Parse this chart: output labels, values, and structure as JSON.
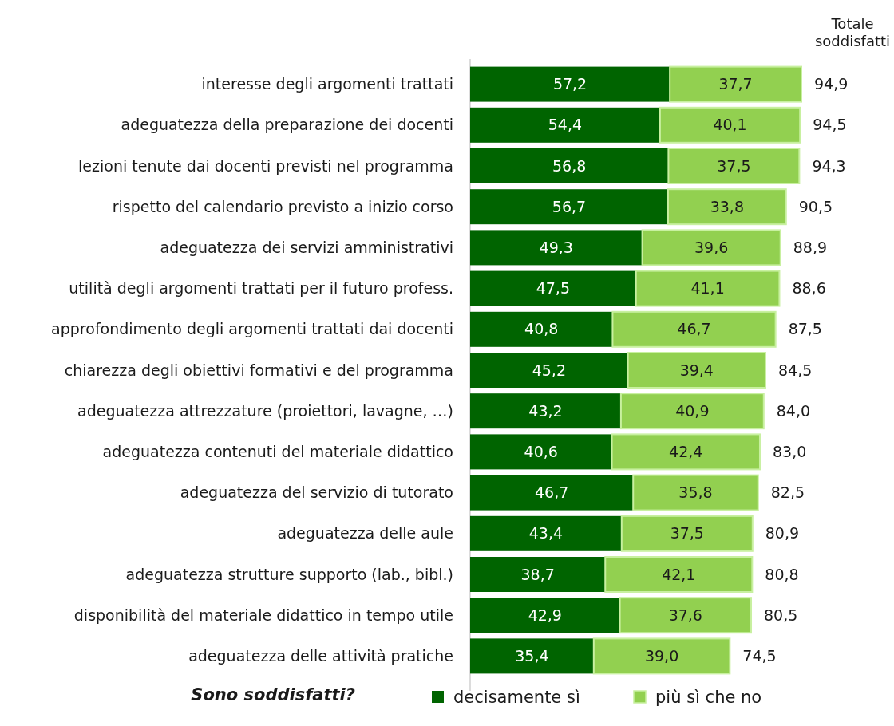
{
  "chart_data": {
    "type": "bar",
    "orientation": "horizontal",
    "stacked": true,
    "legend": "bottom",
    "legend_title": "Sono soddisfatti?",
    "annotations": [
      "Totale soddisfatti"
    ],
    "categories": [
      "interesse degli argomenti trattati",
      "adeguatezza della preparazione dei docenti",
      "lezioni tenute dai docenti previsti nel programma",
      "rispetto del calendario previsto a inizio corso",
      "adeguatezza dei servizi amministrativi",
      "utilità degli argomenti trattati per il futuro profess.",
      "approfondimento degli argomenti trattati dai docenti",
      "chiarezza degli obiettivi formativi e del programma",
      "adeguatezza attrezzature (proiettori, lavagne, …)",
      "adeguatezza contenuti del materiale didattico",
      "adeguatezza del servizio di tutorato",
      "adeguatezza delle aule",
      "adeguatezza strutture supporto (lab., bibl.)",
      "disponibilità del materiale didattico in tempo utile",
      "adeguatezza delle attività pratiche"
    ],
    "series": [
      {
        "name": "decisamente sì",
        "color": "#006400",
        "values": [
          57.2,
          54.4,
          56.8,
          56.7,
          49.3,
          47.5,
          40.8,
          45.2,
          43.2,
          40.6,
          46.7,
          43.4,
          38.7,
          42.9,
          35.4
        ],
        "value_labels": [
          "57,2",
          "54,4",
          "56,8",
          "56,7",
          "49,3",
          "47,5",
          "40,8",
          "45,2",
          "43,2",
          "40,6",
          "46,7",
          "43,4",
          "38,7",
          "42,9",
          "35,4"
        ]
      },
      {
        "name": "più sì che no",
        "color": "#92d050",
        "values": [
          37.7,
          40.1,
          37.5,
          33.8,
          39.6,
          41.1,
          46.7,
          39.4,
          40.9,
          42.4,
          35.8,
          37.5,
          42.1,
          37.6,
          39.0
        ],
        "value_labels": [
          "37,7",
          "40,1",
          "37,5",
          "33,8",
          "39,6",
          "41,1",
          "46,7",
          "39,4",
          "40,9",
          "42,4",
          "35,8",
          "37,5",
          "42,1",
          "37,6",
          "39,0"
        ]
      }
    ],
    "totals": [
      "94,9",
      "94,5",
      "94,3",
      "90,5",
      "88,9",
      "88,6",
      "87,5",
      "84,5",
      "84,0",
      "83,0",
      "82,5",
      "80,9",
      "80,8",
      "80,5",
      "74,5"
    ]
  }
}
